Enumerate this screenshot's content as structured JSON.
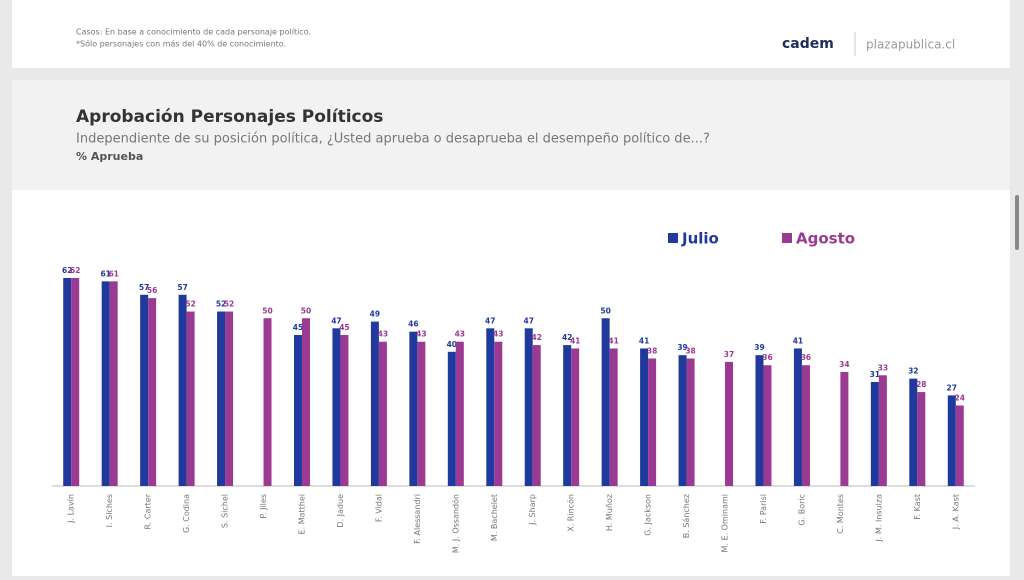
{
  "header": {
    "notes": [
      "Casos: En base a conocimiento de cada personaje político.",
      "*Sólo personajes con más del 40% de conocimiento."
    ],
    "brand": "cadem",
    "site": "plazapublica.cl"
  },
  "chart_data": {
    "type": "bar",
    "title": "Aprobación Personajes Políticos",
    "subtitle": "Independiente de su posición política, ¿Usted aprueba o desaprueba el desempeño político de...?",
    "value_label": "% Aprueba",
    "categories": [
      "J. Lavín",
      "I. Siches",
      "R. Carter",
      "G. Codina",
      "S. Sichel",
      "P. Jiles",
      "E. Matthei",
      "D. Jadue",
      "F. Vidal",
      "F. Alessandri",
      "M. J. Ossandón",
      "M. Bachelet",
      "J. Sharp",
      "X. Rincón",
      "H. Muñoz",
      "G. Jackson",
      "B. Sánchez",
      "M. E. Ominami",
      "F. Parisi",
      "G. Boric",
      "C. Montes",
      "J. M. Insulza",
      "F. Kast",
      "J. A. Kast"
    ],
    "series": [
      {
        "name": "Julio",
        "color": "#1f3a9c",
        "values": [
          62,
          61,
          57,
          57,
          52,
          null,
          45,
          47,
          49,
          46,
          40,
          47,
          47,
          42,
          50,
          41,
          39,
          null,
          39,
          41,
          null,
          31,
          32,
          27
        ]
      },
      {
        "name": "Agosto",
        "color": "#9b3a93",
        "values": [
          62,
          61,
          56,
          52,
          52,
          50,
          50,
          45,
          43,
          43,
          43,
          43,
          42,
          41,
          41,
          38,
          38,
          37,
          36,
          36,
          34,
          33,
          28,
          24
        ]
      }
    ]
  }
}
